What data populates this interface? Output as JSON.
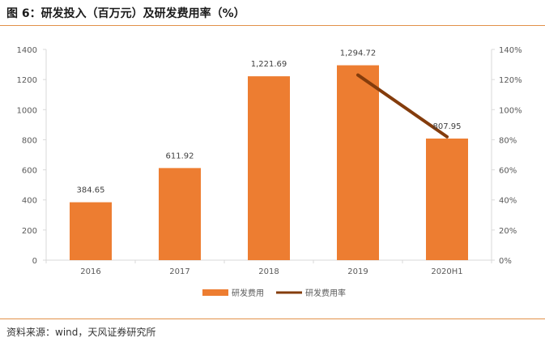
{
  "figure": {
    "title": "图 6：研发投入（百万元）及研发费用率（%）",
    "source": "资料来源：wind，天风证券研究所"
  },
  "colors": {
    "bar": "#ed7d31",
    "line": "#843c0c",
    "rule": "#e2914a",
    "axis": "#d9d9d9",
    "text": "#595959"
  },
  "chart_data": {
    "type": "bar",
    "categories": [
      "2016",
      "2017",
      "2018",
      "2019",
      "2020H1"
    ],
    "series": [
      {
        "name": "研发费用",
        "type": "bar",
        "axis": "left",
        "values": [
          384.65,
          611.92,
          1221.69,
          1294.72,
          807.95
        ],
        "labels": [
          "384.65",
          "611.92",
          "1,221.69",
          "1,294.72",
          "807.95"
        ]
      },
      {
        "name": "研发费用率",
        "type": "line",
        "axis": "right",
        "values": [
          null,
          null,
          null,
          1.23,
          0.82
        ]
      }
    ],
    "ylim_left": [
      0,
      1400
    ],
    "yticks_left": [
      "0",
      "200",
      "400",
      "600",
      "800",
      "1000",
      "1200",
      "1400"
    ],
    "ylim_right": [
      0,
      1.4
    ],
    "yticks_right": [
      "0%",
      "20%",
      "40%",
      "60%",
      "80%",
      "100%",
      "120%",
      "140%"
    ],
    "legend": [
      "研发费用",
      "研发费用率"
    ],
    "legend_position": "bottom"
  }
}
